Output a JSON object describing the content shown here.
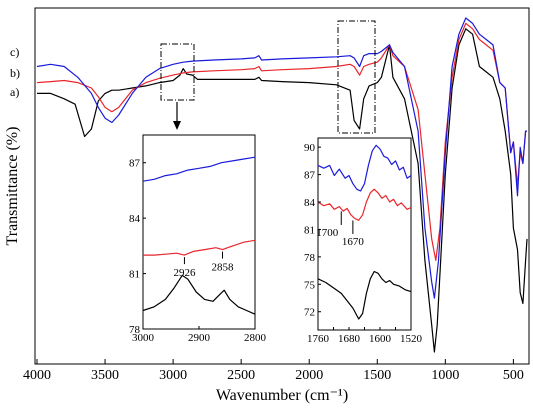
{
  "chart_data": {
    "type": "line",
    "xlabel": "Wavenumber (cm⁻¹)",
    "ylabel": "Transmittance (%)",
    "xlim": [
      4000,
      400
    ],
    "x_reversed": true,
    "xticks": [
      4000,
      3500,
      3000,
      2500,
      2000,
      1500,
      1000,
      500
    ],
    "grid": false,
    "series": [
      {
        "name": "a)",
        "color": "#000000",
        "points": [
          [
            4000,
            0.95
          ],
          [
            3900,
            0.95
          ],
          [
            3800,
            0.9
          ],
          [
            3720,
            0.85
          ],
          [
            3650,
            0.55
          ],
          [
            3600,
            0.62
          ],
          [
            3550,
            0.88
          ],
          [
            3500,
            0.95
          ],
          [
            3450,
            0.98
          ],
          [
            3400,
            0.98
          ],
          [
            3300,
            1.0
          ],
          [
            3200,
            1.02
          ],
          [
            3100,
            1.05
          ],
          [
            3000,
            1.07
          ],
          [
            2950,
            1.12
          ],
          [
            2926,
            1.18
          ],
          [
            2900,
            1.13
          ],
          [
            2858,
            1.12
          ],
          [
            2820,
            1.08
          ],
          [
            2700,
            1.08
          ],
          [
            2500,
            1.08
          ],
          [
            2400,
            1.08
          ],
          [
            2370,
            1.1
          ],
          [
            2350,
            1.07
          ],
          [
            2200,
            1.06
          ],
          [
            2000,
            1.05
          ],
          [
            1800,
            1.03
          ],
          [
            1700,
            0.98
          ],
          [
            1670,
            0.7
          ],
          [
            1630,
            0.62
          ],
          [
            1600,
            0.9
          ],
          [
            1560,
            1.02
          ],
          [
            1500,
            1.05
          ],
          [
            1470,
            1.1
          ],
          [
            1410,
            1.4
          ],
          [
            1385,
            1.1
          ],
          [
            1300,
            0.9
          ],
          [
            1200,
            0.3
          ],
          [
            1150,
            -0.6
          ],
          [
            1100,
            -1.2
          ],
          [
            1080,
            -1.45
          ],
          [
            1060,
            -1.2
          ],
          [
            1000,
            0.2
          ],
          [
            950,
            1.0
          ],
          [
            900,
            1.4
          ],
          [
            850,
            1.55
          ],
          [
            800,
            1.5
          ],
          [
            750,
            1.2
          ],
          [
            700,
            1.15
          ],
          [
            650,
            1.1
          ],
          [
            600,
            0.9
          ],
          [
            560,
            0.6
          ],
          [
            520,
            0.2
          ],
          [
            500,
            -0.3
          ],
          [
            470,
            -0.5
          ],
          [
            450,
            -0.9
          ],
          [
            430,
            -1.0
          ],
          [
            410,
            -0.6
          ],
          [
            400,
            -0.4
          ]
        ]
      },
      {
        "name": "b)",
        "color": "#e8262b",
        "points": [
          [
            4000,
            1.05
          ],
          [
            3900,
            1.06
          ],
          [
            3800,
            1.07
          ],
          [
            3700,
            1.05
          ],
          [
            3600,
            1.0
          ],
          [
            3550,
            0.92
          ],
          [
            3500,
            0.82
          ],
          [
            3450,
            0.78
          ],
          [
            3400,
            0.82
          ],
          [
            3300,
            0.98
          ],
          [
            3200,
            1.05
          ],
          [
            3100,
            1.09
          ],
          [
            3000,
            1.12
          ],
          [
            2926,
            1.14
          ],
          [
            2858,
            1.15
          ],
          [
            2700,
            1.16
          ],
          [
            2500,
            1.17
          ],
          [
            2400,
            1.18
          ],
          [
            2370,
            1.2
          ],
          [
            2350,
            1.16
          ],
          [
            2200,
            1.17
          ],
          [
            2000,
            1.18
          ],
          [
            1800,
            1.2
          ],
          [
            1700,
            1.22
          ],
          [
            1670,
            1.2
          ],
          [
            1630,
            1.12
          ],
          [
            1600,
            1.2
          ],
          [
            1560,
            1.22
          ],
          [
            1500,
            1.24
          ],
          [
            1470,
            1.28
          ],
          [
            1410,
            1.4
          ],
          [
            1385,
            1.3
          ],
          [
            1300,
            1.2
          ],
          [
            1200,
            0.8
          ],
          [
            1150,
            0.2
          ],
          [
            1100,
            -0.4
          ],
          [
            1070,
            -0.6
          ],
          [
            1040,
            -0.3
          ],
          [
            1000,
            0.5
          ],
          [
            950,
            1.1
          ],
          [
            900,
            1.45
          ],
          [
            850,
            1.6
          ],
          [
            800,
            1.55
          ],
          [
            750,
            1.45
          ],
          [
            700,
            1.4
          ],
          [
            650,
            1.35
          ],
          [
            600,
            1.05
          ],
          [
            560,
            1.0
          ],
          [
            520,
            0.4
          ],
          [
            500,
            0.5
          ],
          [
            470,
            0.1
          ],
          [
            450,
            0.4
          ],
          [
            430,
            0.3
          ],
          [
            410,
            0.6
          ],
          [
            400,
            0.6
          ]
        ]
      },
      {
        "name": "c)",
        "color": "#1a1adc",
        "points": [
          [
            4000,
            1.2
          ],
          [
            3900,
            1.22
          ],
          [
            3800,
            1.2
          ],
          [
            3700,
            1.1
          ],
          [
            3600,
            0.95
          ],
          [
            3550,
            0.82
          ],
          [
            3500,
            0.72
          ],
          [
            3450,
            0.68
          ],
          [
            3400,
            0.75
          ],
          [
            3300,
            0.95
          ],
          [
            3200,
            1.1
          ],
          [
            3100,
            1.18
          ],
          [
            3000,
            1.22
          ],
          [
            2926,
            1.24
          ],
          [
            2858,
            1.25
          ],
          [
            2700,
            1.26
          ],
          [
            2500,
            1.27
          ],
          [
            2400,
            1.28
          ],
          [
            2370,
            1.3
          ],
          [
            2350,
            1.26
          ],
          [
            2200,
            1.27
          ],
          [
            2000,
            1.28
          ],
          [
            1800,
            1.29
          ],
          [
            1700,
            1.3
          ],
          [
            1670,
            1.28
          ],
          [
            1630,
            1.2
          ],
          [
            1600,
            1.3
          ],
          [
            1560,
            1.32
          ],
          [
            1500,
            1.32
          ],
          [
            1470,
            1.34
          ],
          [
            1410,
            1.4
          ],
          [
            1385,
            1.33
          ],
          [
            1300,
            1.2
          ],
          [
            1200,
            0.6
          ],
          [
            1150,
            -0.3
          ],
          [
            1100,
            -0.8
          ],
          [
            1080,
            -0.95
          ],
          [
            1050,
            -0.6
          ],
          [
            1000,
            0.4
          ],
          [
            950,
            1.2
          ],
          [
            900,
            1.5
          ],
          [
            850,
            1.65
          ],
          [
            800,
            1.6
          ],
          [
            750,
            1.5
          ],
          [
            700,
            1.45
          ],
          [
            650,
            1.4
          ],
          [
            600,
            1.05
          ],
          [
            560,
            1.0
          ],
          [
            520,
            0.4
          ],
          [
            500,
            0.5
          ],
          [
            470,
            0.0
          ],
          [
            450,
            0.45
          ],
          [
            430,
            0.3
          ],
          [
            410,
            0.6
          ],
          [
            400,
            0.6
          ]
        ]
      }
    ],
    "series_labels": [
      "a)",
      "b)",
      "c)"
    ],
    "annotations": [
      "2926",
      "2858",
      "1700",
      "1670"
    ],
    "insets": [
      {
        "xlim": [
          3000,
          2800
        ],
        "ylim": [
          78,
          88.5
        ],
        "xticks": [
          3000,
          2900,
          2800
        ],
        "yticks": [
          78,
          81,
          84,
          87
        ],
        "series": [
          {
            "color": "#1a1adc",
            "points": [
              [
                3000,
                86.0
              ],
              [
                2980,
                86.1
              ],
              [
                2960,
                86.3
              ],
              [
                2940,
                86.4
              ],
              [
                2920,
                86.6
              ],
              [
                2900,
                86.7
              ],
              [
                2880,
                86.8
              ],
              [
                2860,
                87.0
              ],
              [
                2840,
                87.1
              ],
              [
                2820,
                87.2
              ],
              [
                2800,
                87.3
              ]
            ]
          },
          {
            "color": "#e8262b",
            "points": [
              [
                3000,
                82.0
              ],
              [
                2980,
                82.0
              ],
              [
                2960,
                82.05
              ],
              [
                2940,
                82.1
              ],
              [
                2926,
                82.0
              ],
              [
                2910,
                82.2
              ],
              [
                2890,
                82.3
              ],
              [
                2870,
                82.4
              ],
              [
                2858,
                82.3
              ],
              [
                2840,
                82.5
              ],
              [
                2820,
                82.7
              ],
              [
                2800,
                82.8
              ]
            ]
          },
          {
            "color": "#000000",
            "points": [
              [
                3000,
                79.0
              ],
              [
                2980,
                79.2
              ],
              [
                2960,
                79.6
              ],
              [
                2945,
                80.2
              ],
              [
                2930,
                80.9
              ],
              [
                2920,
                80.7
              ],
              [
                2905,
                80.0
              ],
              [
                2890,
                79.6
              ],
              [
                2875,
                79.5
              ],
              [
                2862,
                79.9
              ],
              [
                2855,
                80.1
              ],
              [
                2845,
                79.6
              ],
              [
                2830,
                79.2
              ],
              [
                2815,
                79.0
              ],
              [
                2800,
                78.8
              ]
            ]
          }
        ]
      },
      {
        "xlim": [
          1760,
          1520
        ],
        "ylim": [
          70,
          91
        ],
        "xticks": [
          1760,
          1720,
          1680,
          1640,
          1600,
          1560,
          1520
        ],
        "yticks": [
          72,
          75,
          78,
          81,
          84,
          87,
          90
        ],
        "series": [
          {
            "color": "#1a1adc",
            "points": [
              [
                1760,
                88.0
              ],
              [
                1745,
                87.7
              ],
              [
                1730,
                88.0
              ],
              [
                1718,
                86.9
              ],
              [
                1705,
                87.6
              ],
              [
                1690,
                86.6
              ],
              [
                1680,
                86.9
              ],
              [
                1670,
                86.0
              ],
              [
                1660,
                85.4
              ],
              [
                1650,
                85.2
              ],
              [
                1640,
                86.0
              ],
              [
                1630,
                88.0
              ],
              [
                1620,
                89.6
              ],
              [
                1610,
                90.2
              ],
              [
                1600,
                89.8
              ],
              [
                1590,
                89.0
              ],
              [
                1580,
                88.8
              ],
              [
                1570,
                88.1
              ],
              [
                1560,
                88.5
              ],
              [
                1550,
                87.5
              ],
              [
                1540,
                87.8
              ],
              [
                1530,
                86.6
              ],
              [
                1520,
                86.9
              ]
            ]
          },
          {
            "color": "#e8262b",
            "points": [
              [
                1760,
                84.0
              ],
              [
                1745,
                83.6
              ],
              [
                1730,
                83.8
              ],
              [
                1718,
                83.2
              ],
              [
                1705,
                83.5
              ],
              [
                1695,
                83.0
              ],
              [
                1685,
                83.3
              ],
              [
                1675,
                82.6
              ],
              [
                1665,
                82.2
              ],
              [
                1655,
                82.0
              ],
              [
                1645,
                82.6
              ],
              [
                1635,
                84.0
              ],
              [
                1625,
                85.0
              ],
              [
                1615,
                85.4
              ],
              [
                1605,
                85.0
              ],
              [
                1595,
                84.4
              ],
              [
                1585,
                84.7
              ],
              [
                1575,
                84.0
              ],
              [
                1565,
                84.3
              ],
              [
                1555,
                83.6
              ],
              [
                1545,
                83.9
              ],
              [
                1530,
                83.2
              ],
              [
                1520,
                83.4
              ]
            ]
          },
          {
            "color": "#000000",
            "points": [
              [
                1760,
                75.6
              ],
              [
                1740,
                75.2
              ],
              [
                1720,
                74.6
              ],
              [
                1700,
                74.0
              ],
              [
                1685,
                73.2
              ],
              [
                1670,
                72.4
              ],
              [
                1655,
                71.2
              ],
              [
                1645,
                71.8
              ],
              [
                1635,
                74.0
              ],
              [
                1625,
                75.6
              ],
              [
                1615,
                76.4
              ],
              [
                1605,
                76.2
              ],
              [
                1595,
                75.6
              ],
              [
                1585,
                75.2
              ],
              [
                1575,
                75.4
              ],
              [
                1565,
                75.0
              ],
              [
                1550,
                74.8
              ],
              [
                1535,
                74.4
              ],
              [
                1520,
                74.2
              ]
            ]
          }
        ]
      }
    ]
  }
}
